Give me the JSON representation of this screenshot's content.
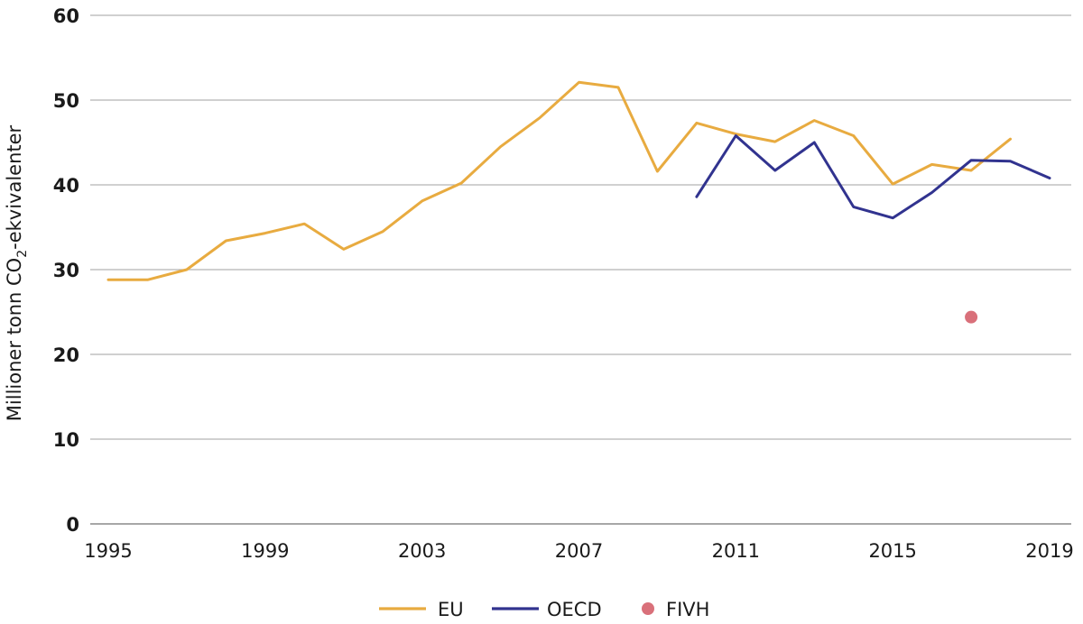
{
  "chart_data": {
    "type": "line",
    "title": "",
    "xlabel": "",
    "ylabel": "Millioner tonn CO₂-ekvivalenter",
    "ylim": [
      0,
      60
    ],
    "xlim": [
      1995,
      2019
    ],
    "yticks": [
      0,
      10,
      20,
      30,
      40,
      50,
      60
    ],
    "xtick_labels": [
      "1995",
      "1999",
      "2003",
      "2007",
      "2011",
      "2015",
      "2019"
    ],
    "grid": true,
    "legend_position": "bottom-center",
    "series": [
      {
        "name": "EU",
        "color": "#e8ab40",
        "marker": "line",
        "x": [
          1995,
          1996,
          1997,
          1998,
          1999,
          2000,
          2001,
          2002,
          2003,
          2004,
          2005,
          2006,
          2007,
          2008,
          2009,
          2010,
          2011,
          2012,
          2013,
          2014,
          2015,
          2016,
          2017,
          2018
        ],
        "values": [
          28.8,
          28.8,
          30.0,
          33.4,
          34.3,
          35.4,
          32.4,
          34.5,
          38.1,
          40.2,
          44.5,
          47.9,
          52.1,
          51.5,
          41.6,
          47.3,
          46.0,
          45.1,
          47.6,
          45.8,
          40.1,
          42.4,
          41.7,
          45.4
        ]
      },
      {
        "name": "OECD",
        "color": "#31338f",
        "marker": "line",
        "x": [
          2010,
          2011,
          2012,
          2013,
          2014,
          2015,
          2016,
          2017,
          2018,
          2019
        ],
        "values": [
          38.6,
          45.8,
          41.7,
          45.0,
          37.4,
          36.1,
          39.1,
          42.9,
          42.8,
          40.8
        ]
      },
      {
        "name": "FIVH",
        "color": "#d9707a",
        "marker": "point",
        "x": [
          2017
        ],
        "values": [
          24.4
        ]
      }
    ]
  }
}
